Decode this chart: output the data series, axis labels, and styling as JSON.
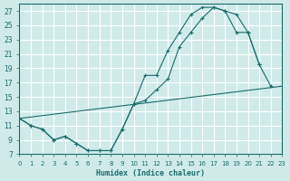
{
  "xlabel": "Humidex (Indice chaleur)",
  "bg_color": "#d0eaea",
  "grid_color": "#ffffff",
  "line_color": "#1a6b6b",
  "xlim": [
    0,
    23
  ],
  "ylim": [
    7,
    28
  ],
  "xticks": [
    0,
    1,
    2,
    3,
    4,
    5,
    6,
    7,
    8,
    9,
    10,
    11,
    12,
    13,
    14,
    15,
    16,
    17,
    18,
    19,
    20,
    21,
    22,
    23
  ],
  "yticks": [
    7,
    9,
    11,
    13,
    15,
    17,
    19,
    21,
    23,
    25,
    27
  ],
  "curve1_x": [
    0,
    1,
    2,
    3,
    4,
    5,
    6,
    7,
    8,
    9,
    10,
    11,
    12,
    13,
    14,
    15,
    16,
    17,
    18,
    19,
    20,
    21
  ],
  "curve1_y": [
    12,
    11,
    10.5,
    9,
    9.5,
    8.5,
    7.5,
    7.5,
    7.5,
    10.5,
    14,
    18,
    18,
    21.5,
    24,
    26.5,
    27.5,
    27.5,
    27,
    26.5,
    24,
    19.5
  ],
  "curve2_x": [
    0,
    1,
    2,
    3,
    4,
    5,
    6,
    7,
    8,
    9,
    10,
    11,
    12,
    13,
    14,
    15,
    16,
    17,
    18,
    19,
    20,
    21,
    22
  ],
  "curve2_y": [
    12,
    11,
    10.5,
    9,
    9.5,
    8.5,
    7.5,
    7.5,
    7.5,
    10.5,
    14,
    14.5,
    16,
    17.5,
    22,
    24,
    26,
    27.5,
    27,
    24,
    24,
    19.5,
    16.5
  ],
  "curve3_x": [
    0,
    23
  ],
  "curve3_y": [
    12,
    16.5
  ]
}
